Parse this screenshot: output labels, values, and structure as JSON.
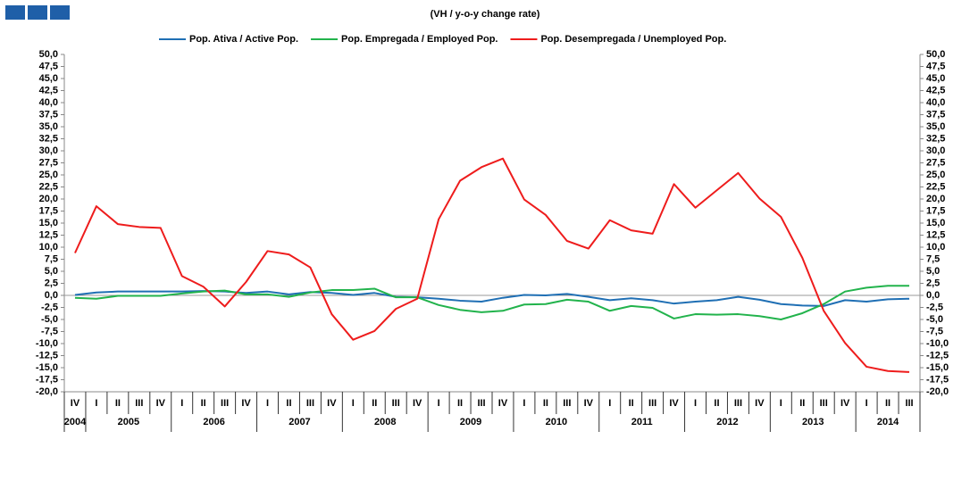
{
  "chart_data": {
    "type": "line",
    "subtitle": "(VH / y-o-y change rate)",
    "categories": [
      "IV",
      "I",
      "II",
      "III",
      "IV",
      "I",
      "II",
      "III",
      "IV",
      "I",
      "II",
      "III",
      "IV",
      "I",
      "II",
      "III",
      "IV",
      "I",
      "II",
      "III",
      "IV",
      "I",
      "II",
      "III",
      "IV",
      "I",
      "II",
      "III",
      "IV",
      "I",
      "II",
      "III",
      "IV",
      "I",
      "II",
      "III",
      "IV",
      "I",
      "II",
      "III"
    ],
    "years": [
      "2004",
      "2005",
      "2006",
      "2007",
      "2008",
      "2009",
      "2010",
      "2011",
      "2012",
      "2013",
      "2014"
    ],
    "series": [
      {
        "name": "Pop. Ativa / Active Pop.",
        "color": "#1f6fb4",
        "values": [
          0.1,
          0.6,
          0.8,
          0.8,
          0.8,
          0.8,
          0.9,
          0.8,
          0.5,
          0.8,
          0.2,
          0.7,
          0.5,
          0.1,
          0.5,
          -0.3,
          -0.4,
          -0.7,
          -1.1,
          -1.3,
          -0.5,
          0.1,
          0.0,
          0.3,
          -0.3,
          -1.0,
          -0.6,
          -1.0,
          -1.7,
          -1.3,
          -1.0,
          -0.3,
          -0.9,
          -1.8,
          -2.1,
          -2.2,
          -1.0,
          -1.3,
          -0.8,
          -0.7
        ]
      },
      {
        "name": "Pop. Empregada / Employed Pop.",
        "color": "#22b34c",
        "values": [
          -0.5,
          -0.7,
          -0.1,
          -0.1,
          -0.1,
          0.4,
          0.8,
          1.0,
          0.2,
          0.2,
          -0.3,
          0.6,
          1.1,
          1.1,
          1.4,
          -0.4,
          -0.4,
          -2.0,
          -3.0,
          -3.5,
          -3.2,
          -1.9,
          -1.8,
          -0.9,
          -1.3,
          -3.2,
          -2.2,
          -2.6,
          -4.8,
          -3.9,
          -4.0,
          -3.9,
          -4.3,
          -5.0,
          -3.7,
          -1.8,
          0.8,
          1.6,
          2.0,
          2.0
        ]
      },
      {
        "name": "Pop. Desempregada / Unemployed Pop.",
        "color": "#ee1c1c",
        "values": [
          8.8,
          18.5,
          14.8,
          14.2,
          14.0,
          4.0,
          1.8,
          -2.3,
          2.8,
          9.2,
          8.5,
          5.8,
          -3.9,
          -9.2,
          -7.4,
          -2.8,
          -0.7,
          15.8,
          23.8,
          26.6,
          28.4,
          19.9,
          16.7,
          11.3,
          9.7,
          15.6,
          13.5,
          12.8,
          23.1,
          18.2,
          21.8,
          25.4,
          20.1,
          16.3,
          7.8,
          -3.2,
          -9.9,
          -14.8,
          -15.7,
          -15.9
        ]
      }
    ],
    "ylim": [
      -20,
      50
    ],
    "yticks": [
      {
        "value": -20,
        "label": "-20,0"
      },
      {
        "value": -17.5,
        "label": "-17,5"
      },
      {
        "value": -15,
        "label": "-15,0"
      },
      {
        "value": -12.5,
        "label": "-12,5"
      },
      {
        "value": -10,
        "label": "-10,0"
      },
      {
        "value": -7.5,
        "label": "-7,5"
      },
      {
        "value": -5,
        "label": "-5,0"
      },
      {
        "value": -2.5,
        "label": "-2,5"
      },
      {
        "value": 0,
        "label": "0,0"
      },
      {
        "value": 2.5,
        "label": "2,5"
      },
      {
        "value": 5,
        "label": "5,0"
      },
      {
        "value": 7.5,
        "label": "7,5"
      },
      {
        "value": 10,
        "label": "10,0"
      },
      {
        "value": 12.5,
        "label": "12,5"
      },
      {
        "value": 15,
        "label": "15,0"
      },
      {
        "value": 17.5,
        "label": "17,5"
      },
      {
        "value": 20,
        "label": "20,0"
      },
      {
        "value": 22.5,
        "label": "22,5"
      },
      {
        "value": 25,
        "label": "25,0"
      },
      {
        "value": 27.5,
        "label": "27,5"
      },
      {
        "value": 30,
        "label": "30,0"
      },
      {
        "value": 32.5,
        "label": "32,5"
      },
      {
        "value": 35,
        "label": "35,0"
      },
      {
        "value": 37.5,
        "label": "37,5"
      },
      {
        "value": 40,
        "label": "40,0"
      },
      {
        "value": 42.5,
        "label": "42,5"
      },
      {
        "value": 45,
        "label": "45,0"
      },
      {
        "value": 47.5,
        "label": "47,5"
      },
      {
        "value": 50,
        "label": "50,0"
      }
    ],
    "y2lim": [
      -20,
      50
    ],
    "y2ticks": [
      {
        "value": -20,
        "label": "-20,0"
      },
      {
        "value": -17.5,
        "label": "-17,5"
      },
      {
        "value": -15,
        "label": "-15,0"
      },
      {
        "value": -12.5,
        "label": "-12,5"
      },
      {
        "value": -10,
        "label": "-10,0"
      },
      {
        "value": -7.5,
        "label": "-7,5"
      },
      {
        "value": -5,
        "label": "-5,0"
      },
      {
        "value": -2.5,
        "label": "-2,5"
      },
      {
        "value": 0,
        "label": "0,0"
      },
      {
        "value": 2.5,
        "label": "2,5"
      },
      {
        "value": 5,
        "label": "5,0"
      },
      {
        "value": 7.5,
        "label": "7,5"
      },
      {
        "value": 10,
        "label": "10,0"
      },
      {
        "value": 12.5,
        "label": "12,5"
      },
      {
        "value": 15,
        "label": "15,0"
      },
      {
        "value": 17.5,
        "label": "17,5"
      },
      {
        "value": 20,
        "label": "20,0"
      },
      {
        "value": 22.5,
        "label": "22,5"
      },
      {
        "value": 25,
        "label": "25,0"
      },
      {
        "value": 27.5,
        "label": "27,5"
      },
      {
        "value": 30,
        "label": "30,0"
      },
      {
        "value": 32.5,
        "label": "32,5"
      },
      {
        "value": 35,
        "label": "35,0"
      },
      {
        "value": 37.5,
        "label": "37,5"
      },
      {
        "value": 40,
        "label": "40,0"
      },
      {
        "value": 42.5,
        "label": "42,5"
      },
      {
        "value": 45,
        "label": "45,0"
      },
      {
        "value": 47.5,
        "label": "47,5"
      },
      {
        "value": 50,
        "label": "50,0"
      }
    ],
    "grid": false
  }
}
